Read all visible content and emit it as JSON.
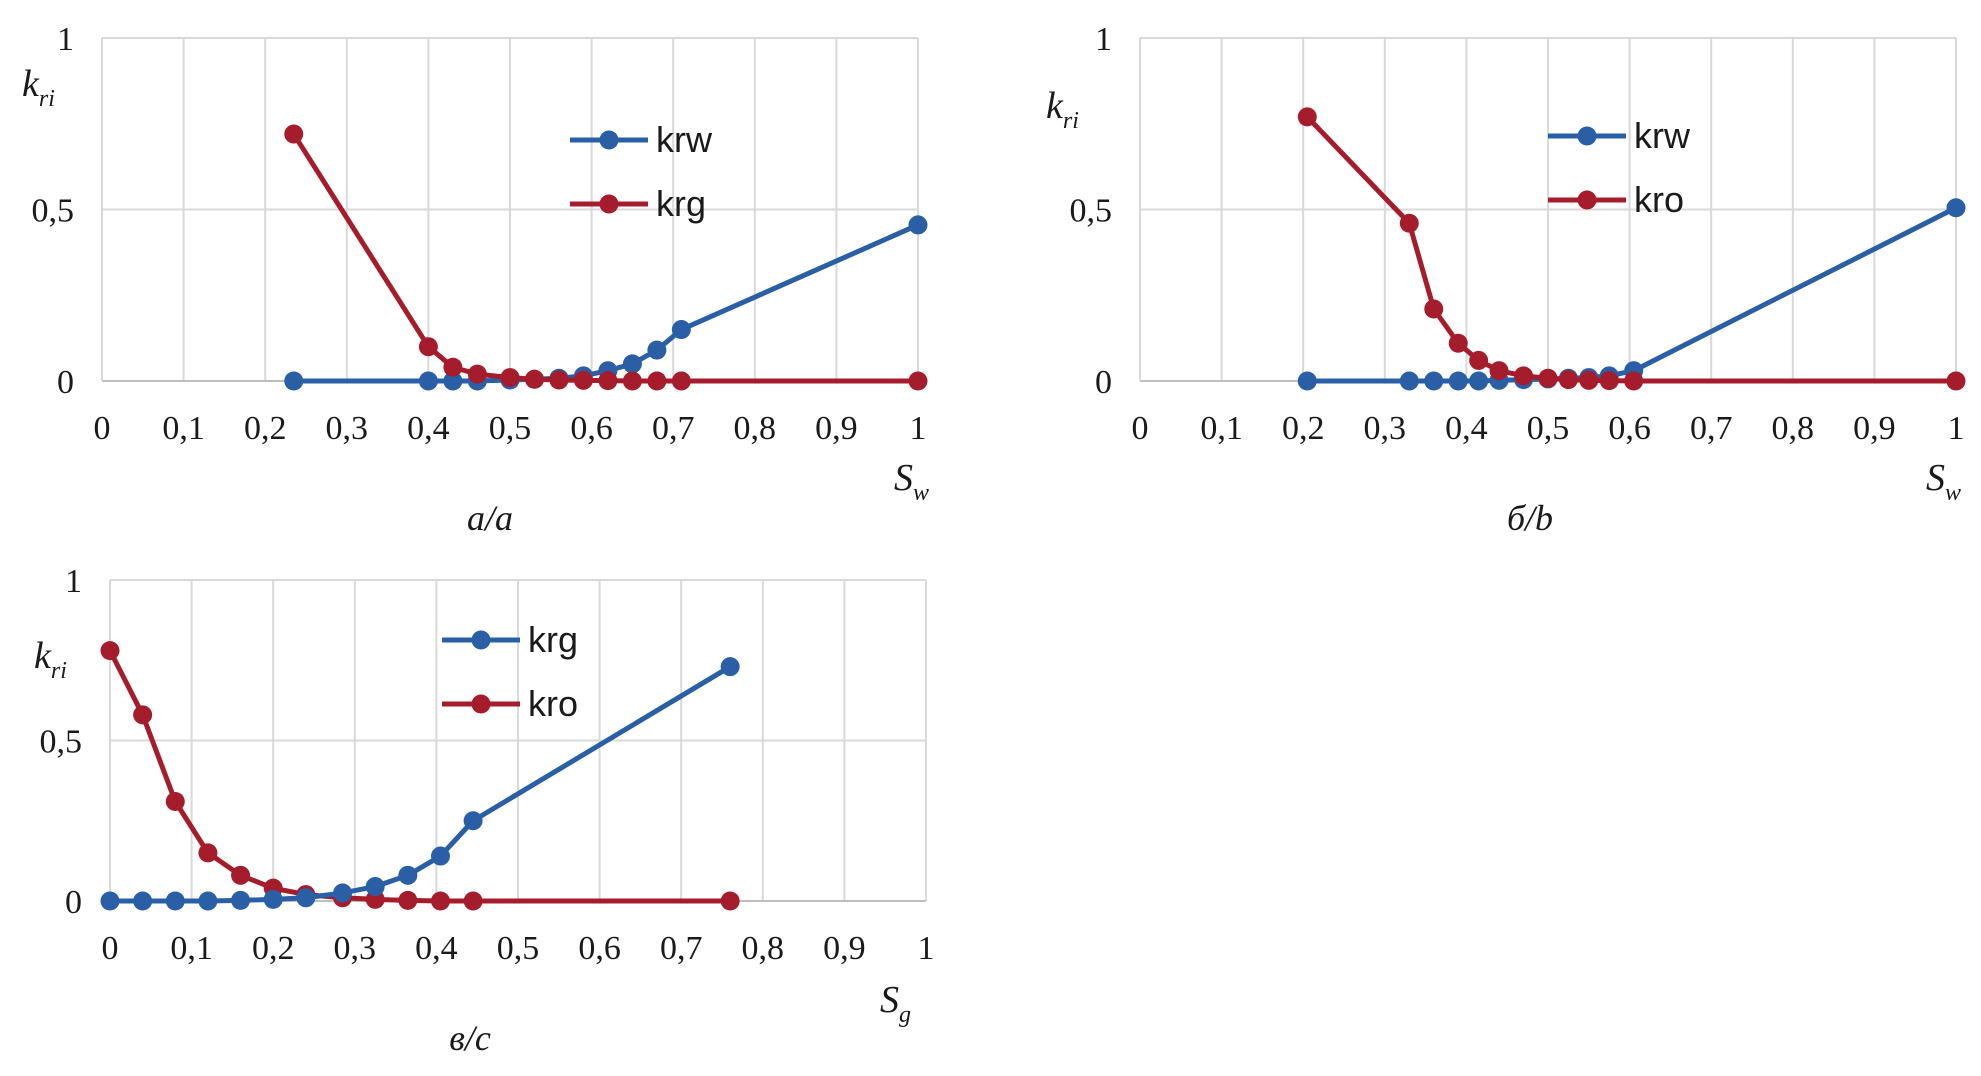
{
  "colors": {
    "blue": "#2a5ea5",
    "red": "#a51d2d",
    "grid": "#d9d9d9",
    "axis": "#bfbfbf"
  },
  "chart_data": [
    {
      "type": "line",
      "id": "a",
      "caption": "a/a",
      "ylabel_main": "k",
      "ylabel_sub": "ri",
      "xlabel_main": "S",
      "xlabel_sub": "w",
      "xlim": [
        0,
        1
      ],
      "ylim": [
        0,
        1
      ],
      "x_ticks": [
        "0",
        "0,1",
        "0,2",
        "0,3",
        "0,4",
        "0,5",
        "0,6",
        "0,7",
        "0,8",
        "0,9",
        "1"
      ],
      "y_ticks": [
        "0",
        "0,5",
        "1"
      ],
      "legend_position": "top-center",
      "series": [
        {
          "name": "krw",
          "color": "#2a5ea5",
          "x": [
            0.235,
            0.4,
            0.43,
            0.46,
            0.5,
            0.53,
            0.56,
            0.59,
            0.62,
            0.65,
            0.68,
            0.71,
            1.0
          ],
          "y": [
            0,
            0,
            0,
            0,
            0.003,
            0.005,
            0.008,
            0.015,
            0.03,
            0.05,
            0.09,
            0.15,
            0.455
          ]
        },
        {
          "name": "krg",
          "color": "#a51d2d",
          "x": [
            0.235,
            0.4,
            0.43,
            0.46,
            0.5,
            0.53,
            0.56,
            0.59,
            0.62,
            0.65,
            0.68,
            0.71,
            1.0
          ],
          "y": [
            0.72,
            0.1,
            0.04,
            0.02,
            0.01,
            0.005,
            0.003,
            0.002,
            0.001,
            0,
            0,
            0,
            0
          ]
        }
      ]
    },
    {
      "type": "line",
      "id": "b",
      "caption": "б/b",
      "ylabel_main": "k",
      "ylabel_sub": "ri",
      "xlabel_main": "S",
      "xlabel_sub": "w",
      "xlim": [
        0,
        1
      ],
      "ylim": [
        0,
        1
      ],
      "x_ticks": [
        "0",
        "0,1",
        "0,2",
        "0,3",
        "0,4",
        "0,5",
        "0,6",
        "0,7",
        "0,8",
        "0,9",
        "1"
      ],
      "y_ticks": [
        "0",
        "0,5",
        "1"
      ],
      "legend_position": "top-center",
      "series": [
        {
          "name": "krw",
          "color": "#2a5ea5",
          "x": [
            0.205,
            0.33,
            0.36,
            0.39,
            0.415,
            0.44,
            0.47,
            0.5,
            0.525,
            0.55,
            0.575,
            0.605,
            1.0
          ],
          "y": [
            0,
            0,
            0,
            0,
            0,
            0.002,
            0.004,
            0.006,
            0.008,
            0.01,
            0.015,
            0.03,
            0.505
          ]
        },
        {
          "name": "kro",
          "color": "#a51d2d",
          "x": [
            0.205,
            0.33,
            0.36,
            0.39,
            0.415,
            0.44,
            0.47,
            0.5,
            0.525,
            0.55,
            0.575,
            0.605,
            1.0
          ],
          "y": [
            0.77,
            0.46,
            0.21,
            0.11,
            0.06,
            0.03,
            0.015,
            0.008,
            0.004,
            0.002,
            0.001,
            0,
            0
          ]
        }
      ]
    },
    {
      "type": "line",
      "id": "c",
      "caption": "в/c",
      "ylabel_main": "k",
      "ylabel_sub": "ri",
      "xlabel_main": "S",
      "xlabel_sub": "g",
      "xlim": [
        0,
        1
      ],
      "ylim": [
        0,
        1
      ],
      "x_ticks": [
        "0",
        "0,1",
        "0,2",
        "0,3",
        "0,4",
        "0,5",
        "0,6",
        "0,7",
        "0,8",
        "0,9",
        "1"
      ],
      "y_ticks": [
        "0",
        "0,5",
        "1"
      ],
      "legend_position": "top-center",
      "series": [
        {
          "name": "krg",
          "color": "#2a5ea5",
          "x": [
            0,
            0.04,
            0.08,
            0.12,
            0.16,
            0.2,
            0.24,
            0.285,
            0.325,
            0.365,
            0.405,
            0.445,
            0.76
          ],
          "y": [
            0,
            0,
            0,
            0,
            0.002,
            0.005,
            0.01,
            0.025,
            0.045,
            0.08,
            0.14,
            0.25,
            0.73
          ]
        },
        {
          "name": "kro",
          "color": "#a51d2d",
          "x": [
            0,
            0.04,
            0.08,
            0.12,
            0.16,
            0.2,
            0.24,
            0.285,
            0.325,
            0.365,
            0.405,
            0.445,
            0.76
          ],
          "y": [
            0.78,
            0.58,
            0.31,
            0.15,
            0.08,
            0.04,
            0.02,
            0.01,
            0.005,
            0.002,
            0,
            0,
            0
          ]
        }
      ]
    }
  ]
}
